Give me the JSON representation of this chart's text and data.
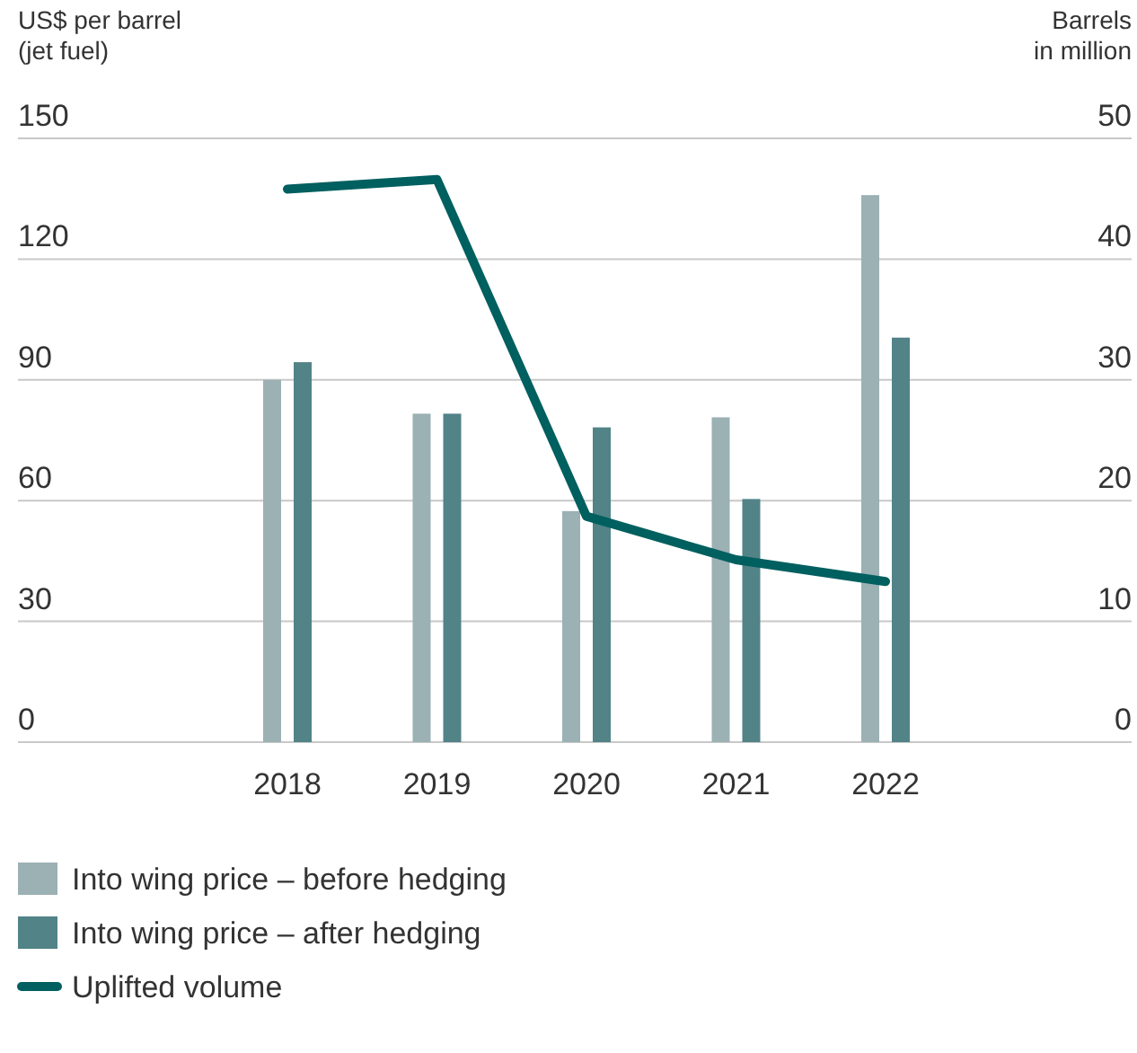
{
  "chart_data": {
    "type": "bar",
    "ylabel": "US$ per barrel\n(jet fuel)",
    "y2label": "Barrels\nin million",
    "categories": [
      "2018",
      "2019",
      "2020",
      "2021",
      "2022"
    ],
    "series": [
      {
        "name": "Into wing price – before hedging",
        "color": "#9bb1b4",
        "values": [
          90,
          81.6,
          57.4,
          80.7,
          135.9
        ]
      },
      {
        "name": "Into wing price – after hedging",
        "color": "#518387",
        "values": [
          94.4,
          81.6,
          78.2,
          60.4,
          100.5
        ]
      },
      {
        "name": "Uplifted volume",
        "type": "line",
        "axis": "y2",
        "color": "#005f5f",
        "values": [
          45.8,
          46.6,
          18.7,
          15.1,
          13.3
        ]
      }
    ],
    "ylim": [
      0,
      150
    ],
    "yticks": [
      0,
      30,
      60,
      90,
      120,
      150
    ],
    "y2lim": [
      0,
      50
    ],
    "y2ticks": [
      0,
      10,
      20,
      30,
      40,
      50
    ],
    "grid": "y",
    "legend": "bottom",
    "marker": "none"
  }
}
